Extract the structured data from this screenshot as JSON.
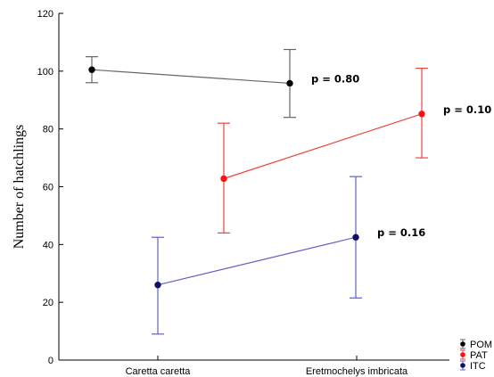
{
  "chart_data": {
    "type": "line",
    "xlabel": "",
    "ylabel": "Number of hatchlings",
    "categories": [
      "Caretta caretta",
      "Eretmochelys imbricata"
    ],
    "ylim": [
      0,
      120
    ],
    "yticks": [
      0,
      20,
      40,
      60,
      80,
      100,
      120
    ],
    "grid": false,
    "legend_position": "bottom-right",
    "series": [
      {
        "name": "POM",
        "color": "#000000",
        "line_color": "#666666",
        "x_positions": [
          0.0,
          0.9
        ],
        "values": [
          100.5,
          95.8
        ],
        "err_low": [
          96.0,
          84.0
        ],
        "err_high": [
          105.0,
          107.5
        ],
        "label_text": "p = 0.80"
      },
      {
        "name": "PAT",
        "color": "#ff1010",
        "line_color": "#ee4444",
        "x_positions": [
          0.6,
          1.5
        ],
        "values": [
          62.8,
          85.2
        ],
        "err_low": [
          44.0,
          70.0
        ],
        "err_high": [
          82.0,
          101.0
        ],
        "label_text": "p = 0.10"
      },
      {
        "name": "ITC",
        "color": "#101060",
        "line_color": "#6060c0",
        "x_positions": [
          0.3,
          1.2
        ],
        "values": [
          26.0,
          42.5
        ],
        "err_low": [
          9.0,
          21.5
        ],
        "err_high": [
          42.5,
          63.5
        ],
        "label_text": "p = 0.16"
      }
    ]
  }
}
